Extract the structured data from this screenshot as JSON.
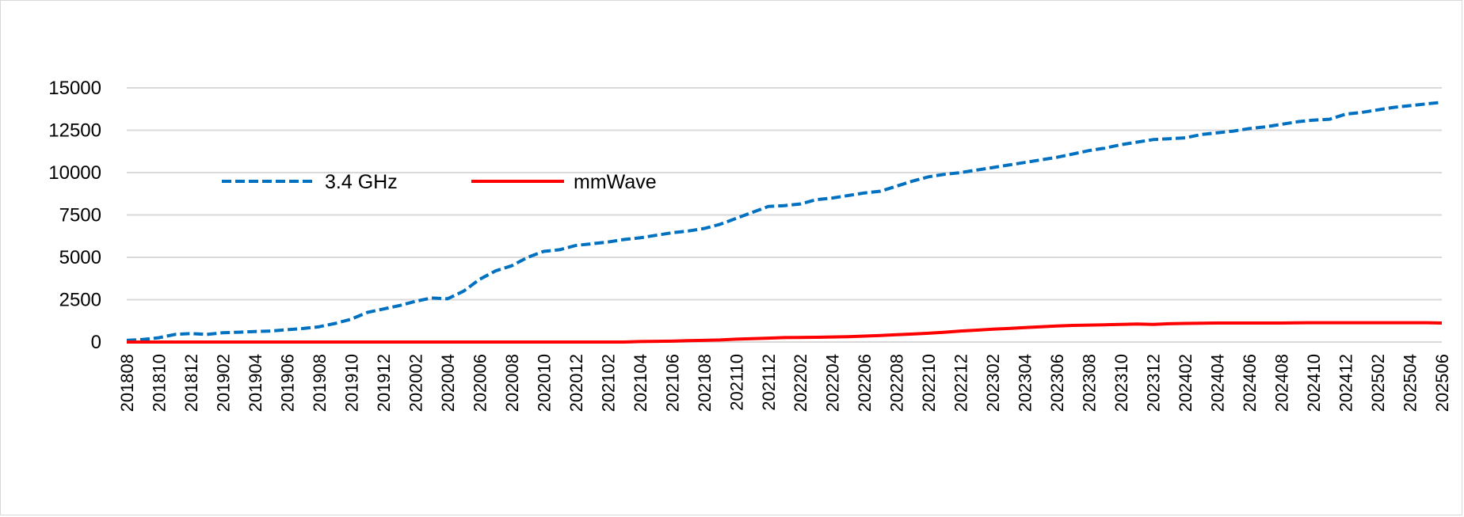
{
  "chart_data": {
    "type": "line",
    "title": "",
    "xlabel": "",
    "ylabel": "",
    "ylim": [
      0,
      15000
    ],
    "y_ticks": [
      "0",
      "2500",
      "5000",
      "7500",
      "10000",
      "12500",
      "15000"
    ],
    "grid": "horizontal",
    "legend_position": "top-left",
    "x": [
      "201808",
      "201809",
      "201810",
      "201811",
      "201812",
      "201901",
      "201902",
      "201903",
      "201904",
      "201905",
      "201906",
      "201907",
      "201908",
      "201909",
      "201910",
      "201911",
      "201912",
      "202001",
      "202002",
      "202003",
      "202004",
      "202005",
      "202006",
      "202007",
      "202008",
      "202009",
      "202010",
      "202011",
      "202012",
      "202101",
      "202102",
      "202103",
      "202104",
      "202105",
      "202106",
      "202107",
      "202108",
      "202109",
      "202110",
      "202111",
      "202112",
      "202201",
      "202202",
      "202203",
      "202204",
      "202205",
      "202206",
      "202207",
      "202208",
      "202209",
      "202210",
      "202211",
      "202212",
      "202301",
      "202302",
      "202303",
      "202304",
      "202305",
      "202306",
      "202307",
      "202308",
      "202309",
      "202310",
      "202311",
      "202312",
      "202401",
      "202402",
      "202403",
      "202404",
      "202405",
      "202406",
      "202407",
      "202408",
      "202409",
      "202410",
      "202411",
      "202412",
      "202501",
      "202502",
      "202503",
      "202504",
      "202505",
      "202506"
    ],
    "x_tick_labels": [
      "201808",
      "201810",
      "201812",
      "201902",
      "201904",
      "201906",
      "201908",
      "201910",
      "201912",
      "202002",
      "202004",
      "202006",
      "202008",
      "202010",
      "202012",
      "202102",
      "202104",
      "202106",
      "202108",
      "202110",
      "202112",
      "202202",
      "202204",
      "202206",
      "202208",
      "202210",
      "202212",
      "202302",
      "202304",
      "202306",
      "202308",
      "202310",
      "202312",
      "202402",
      "202404",
      "202406",
      "202408",
      "202410",
      "202412",
      "202502",
      "202504",
      "202506"
    ],
    "series": [
      {
        "name": "3.4 GHz",
        "color": "#0070C0",
        "style": "dashed",
        "values": [
          100,
          150,
          250,
          450,
          500,
          450,
          550,
          580,
          620,
          650,
          730,
          800,
          900,
          1100,
          1350,
          1750,
          1950,
          2150,
          2400,
          2600,
          2550,
          3000,
          3700,
          4200,
          4500,
          5000,
          5350,
          5450,
          5700,
          5800,
          5900,
          6050,
          6150,
          6300,
          6450,
          6550,
          6700,
          6950,
          7300,
          7650,
          8000,
          8050,
          8150,
          8400,
          8500,
          8650,
          8800,
          8900,
          9200,
          9500,
          9750,
          9900,
          10000,
          10150,
          10300,
          10450,
          10600,
          10750,
          10900,
          11100,
          11300,
          11450,
          11650,
          11800,
          11950,
          12000,
          12050,
          12250,
          12350,
          12450,
          12600,
          12700,
          12850,
          13000,
          13100,
          13150,
          13450,
          13550,
          13700,
          13850,
          13950,
          14050,
          14150
        ]
      },
      {
        "name": "mmWave",
        "color": "#FF0000",
        "style": "solid",
        "values": [
          0,
          0,
          0,
          0,
          0,
          0,
          0,
          0,
          0,
          0,
          0,
          0,
          0,
          0,
          0,
          0,
          0,
          0,
          0,
          0,
          0,
          0,
          0,
          0,
          0,
          0,
          0,
          0,
          0,
          0,
          0,
          0,
          30,
          40,
          50,
          80,
          100,
          120,
          170,
          200,
          230,
          260,
          270,
          280,
          300,
          320,
          350,
          390,
          430,
          470,
          520,
          580,
          650,
          700,
          760,
          800,
          850,
          900,
          950,
          980,
          1000,
          1020,
          1040,
          1060,
          1040,
          1080,
          1100,
          1110,
          1120,
          1120,
          1120,
          1120,
          1120,
          1130,
          1140,
          1140,
          1140,
          1140,
          1140,
          1140,
          1140,
          1140,
          1120
        ]
      }
    ]
  }
}
